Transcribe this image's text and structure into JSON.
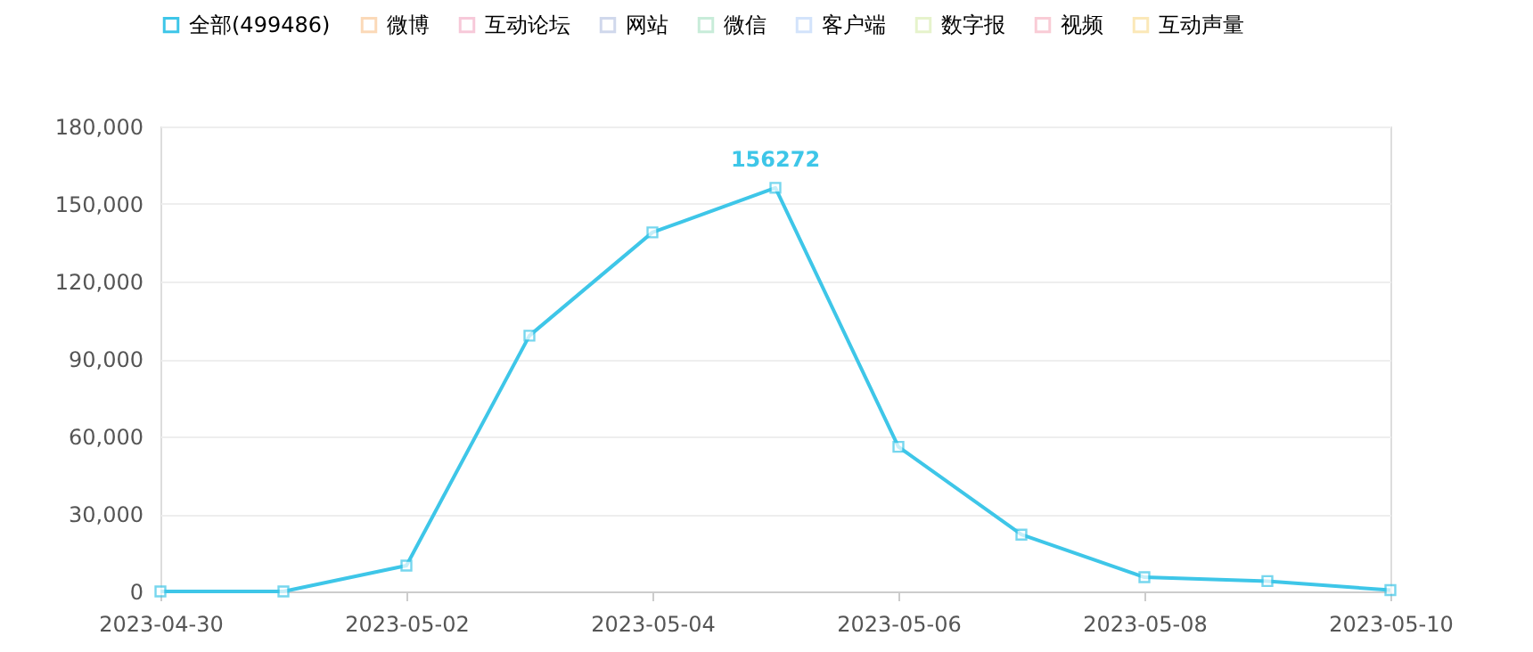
{
  "chart_data": {
    "type": "line",
    "categories": [
      "2023-04-30",
      null,
      "2023-05-02",
      null,
      "2023-05-04",
      null,
      "2023-05-06",
      null,
      "2023-05-08",
      null,
      "2023-05-10"
    ],
    "series": [
      {
        "name": "全部(499486)",
        "color": "#3ec6e8",
        "values": [
          0,
          0,
          10000,
          99000,
          139000,
          156272,
          56000,
          22000,
          5500,
          4000,
          500
        ]
      },
      {
        "name": "微博",
        "color": "#fbd9b8",
        "values": [
          null,
          null,
          null,
          null,
          null,
          null,
          null,
          null,
          null,
          null,
          null
        ]
      },
      {
        "name": "互动论坛",
        "color": "#f7c9d9",
        "values": [
          null,
          null,
          null,
          null,
          null,
          null,
          null,
          null,
          null,
          null,
          null
        ]
      },
      {
        "name": "网站",
        "color": "#d0d8ec",
        "values": [
          null,
          null,
          null,
          null,
          null,
          null,
          null,
          null,
          null,
          null,
          null
        ]
      },
      {
        "name": "微信",
        "color": "#c8ecd9",
        "values": [
          null,
          null,
          null,
          null,
          null,
          null,
          null,
          null,
          null,
          null,
          null
        ]
      },
      {
        "name": "客户端",
        "color": "#d3e3fb",
        "values": [
          null,
          null,
          null,
          null,
          null,
          null,
          null,
          null,
          null,
          null,
          null
        ]
      },
      {
        "name": "数字报",
        "color": "#e6f3cc",
        "values": [
          null,
          null,
          null,
          null,
          null,
          null,
          null,
          null,
          null,
          null,
          null
        ]
      },
      {
        "name": "视频",
        "color": "#f9ccd6",
        "values": [
          null,
          null,
          null,
          null,
          null,
          null,
          null,
          null,
          null,
          null,
          null
        ]
      },
      {
        "name": "互动声量",
        "color": "#fbe8b8",
        "values": [
          null,
          null,
          null,
          null,
          null,
          null,
          null,
          null,
          null,
          null,
          null
        ]
      }
    ],
    "ylim": [
      0,
      180000
    ],
    "yticks": [
      0,
      {
        "value": 30000,
        "label": "30,000"
      },
      {
        "value": 60000,
        "label": "60,000"
      },
      {
        "value": 90000,
        "label": "90,000"
      },
      {
        "value": 120000,
        "label": "120,000"
      },
      {
        "value": 150000,
        "label": "150,000"
      },
      {
        "value": 180000,
        "label": "180,000"
      }
    ],
    "annotations": [
      {
        "text": "156272",
        "y": 156272
      }
    ],
    "grid": "y",
    "legend": "top left",
    "marker": "square",
    "line_style": "solid"
  }
}
